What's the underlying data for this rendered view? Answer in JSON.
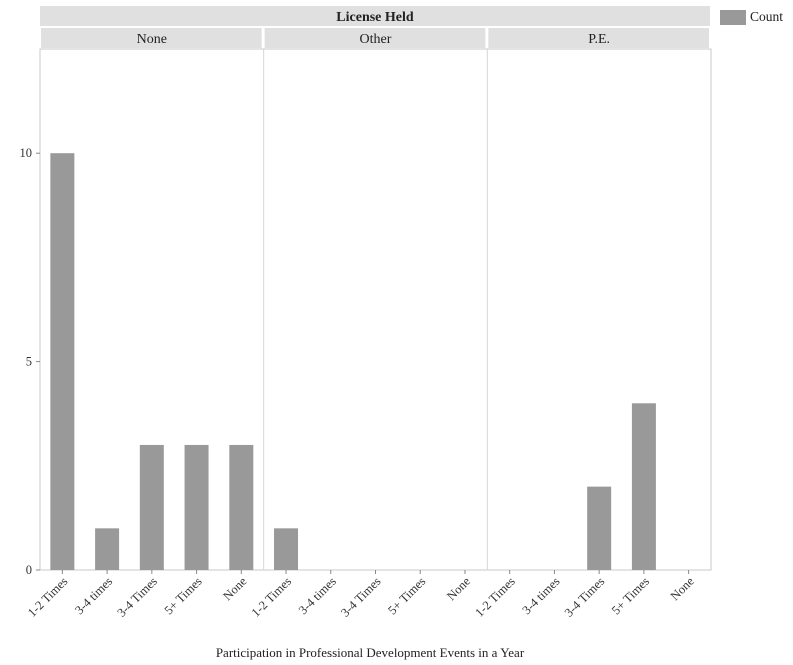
{
  "chart_data": {
    "type": "bar",
    "facet_title": "License Held",
    "facets": [
      "None",
      "Other",
      "P.E."
    ],
    "categories": [
      "1-2 Times",
      "3-4 times",
      "3-4 Times",
      "5+ Times",
      "None"
    ],
    "series": [
      {
        "name": "Count",
        "values_by_facet": {
          "None": [
            10,
            1,
            3,
            3,
            3
          ],
          "Other": [
            1,
            0,
            0,
            0,
            0
          ],
          "P.E.": [
            0,
            0,
            2,
            4,
            0
          ]
        }
      }
    ],
    "xlabel": "Participation in Professional Development Events in a Year",
    "ylabel": "",
    "yticks": [
      0,
      5,
      10
    ],
    "ylim": [
      0,
      12.5
    ],
    "grid": false,
    "legend_position": "top-right",
    "bar_color": "#999999",
    "header_color": "#e0e0e0"
  }
}
